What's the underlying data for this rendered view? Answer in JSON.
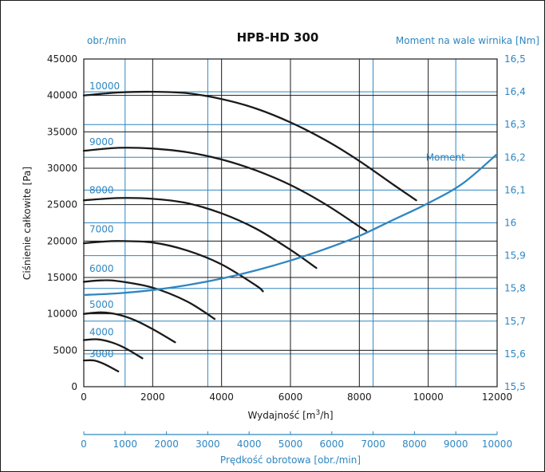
{
  "chart_data": {
    "type": "line",
    "title": "HPB-HD 300",
    "xlabel": "Wydajność [m3/h]",
    "xlabel_parts": {
      "before": "Wydajność [m",
      "sup": "3",
      "after": "/h]"
    },
    "ylabel": "Ciśnienie całkowite [Pa]",
    "y2label": "Moment na wale wirnika [Nm]",
    "rpm_label": "obr./min",
    "secondary_x_label": "Prędkość obrotowa [obr./min]",
    "xlim": [
      0,
      12000
    ],
    "ylim": [
      0,
      45000
    ],
    "y2lim": [
      15.5,
      16.5
    ],
    "secondary_x_lim": [
      0,
      10000
    ],
    "x_ticks": [
      "0",
      "2000",
      "4000",
      "6000",
      "8000",
      "10000",
      "12000"
    ],
    "y_ticks": [
      "0",
      "5000",
      "10000",
      "15000",
      "20000",
      "25000",
      "30000",
      "35000",
      "40000",
      "45000"
    ],
    "y2_ticks": [
      "15,5",
      "15,6",
      "15,7",
      "15,8",
      "15,9",
      "16",
      "16,1",
      "16,2",
      "16,3",
      "16,4",
      "16,5"
    ],
    "secondary_x_ticks": [
      "0",
      "1000",
      "2000",
      "3000",
      "4000",
      "5000",
      "6000",
      "7000",
      "8000",
      "9000",
      "10000"
    ],
    "grid": true,
    "colors": {
      "pressure": "#1a1a1a",
      "moment": "#2e86c1",
      "grid_black": "#1a1a1a",
      "grid_blue": "#2e86c1"
    },
    "series": [
      {
        "name": "10000",
        "label_y": 41300,
        "x": [
          0,
          1000,
          2000,
          3000,
          4000,
          5000,
          6000,
          7000,
          8000,
          9000,
          9650
        ],
        "y": [
          40000,
          40400,
          40500,
          40300,
          39500,
          38200,
          36300,
          33900,
          31000,
          27700,
          25600
        ]
      },
      {
        "name": "9000",
        "label_y": 33600,
        "x": [
          0,
          1000,
          2000,
          3000,
          4000,
          5000,
          6000,
          7000,
          8000,
          8200
        ],
        "y": [
          32400,
          32800,
          32700,
          32200,
          31200,
          29700,
          27700,
          25100,
          22000,
          21400
        ]
      },
      {
        "name": "8000",
        "label_y": 27000,
        "x": [
          0,
          1000,
          2000,
          3000,
          4000,
          5000,
          6000,
          6750
        ],
        "y": [
          25600,
          25900,
          25800,
          25200,
          23800,
          21700,
          18800,
          16300
        ]
      },
      {
        "name": "7000",
        "label_y": 21600,
        "x": [
          0,
          500,
          1000,
          2000,
          3000,
          4000,
          5000,
          5200
        ],
        "y": [
          19700,
          19900,
          20000,
          19800,
          18700,
          16800,
          13900,
          13100
        ]
      },
      {
        "name": "6000",
        "label_y": 16200,
        "x": [
          0,
          500,
          1000,
          2000,
          3000,
          3800
        ],
        "y": [
          14400,
          14600,
          14500,
          13600,
          11700,
          9300
        ]
      },
      {
        "name": "5000",
        "label_y": 11300,
        "x": [
          0,
          500,
          1000,
          1500,
          2000,
          2650
        ],
        "y": [
          10000,
          10200,
          9900,
          9100,
          7900,
          6100
        ]
      },
      {
        "name": "4000",
        "label_y": 7500,
        "x": [
          0,
          400,
          800,
          1200,
          1700
        ],
        "y": [
          6400,
          6500,
          6100,
          5300,
          3900
        ]
      },
      {
        "name": "3000",
        "label_y": 4500,
        "x": [
          0,
          300,
          600,
          1000
        ],
        "y": [
          3600,
          3600,
          3100,
          2100
        ]
      },
      {
        "name": "Moment",
        "axis": "right",
        "label_x": 10500,
        "x": [
          0,
          1000,
          2000,
          3000,
          4000,
          5000,
          6000,
          7000,
          8000,
          9000,
          10000,
          11000,
          12000
        ],
        "y": [
          15.78,
          15.785,
          15.795,
          15.81,
          15.83,
          15.855,
          15.885,
          15.92,
          15.96,
          16.01,
          16.06,
          16.12,
          16.21
        ]
      }
    ]
  }
}
